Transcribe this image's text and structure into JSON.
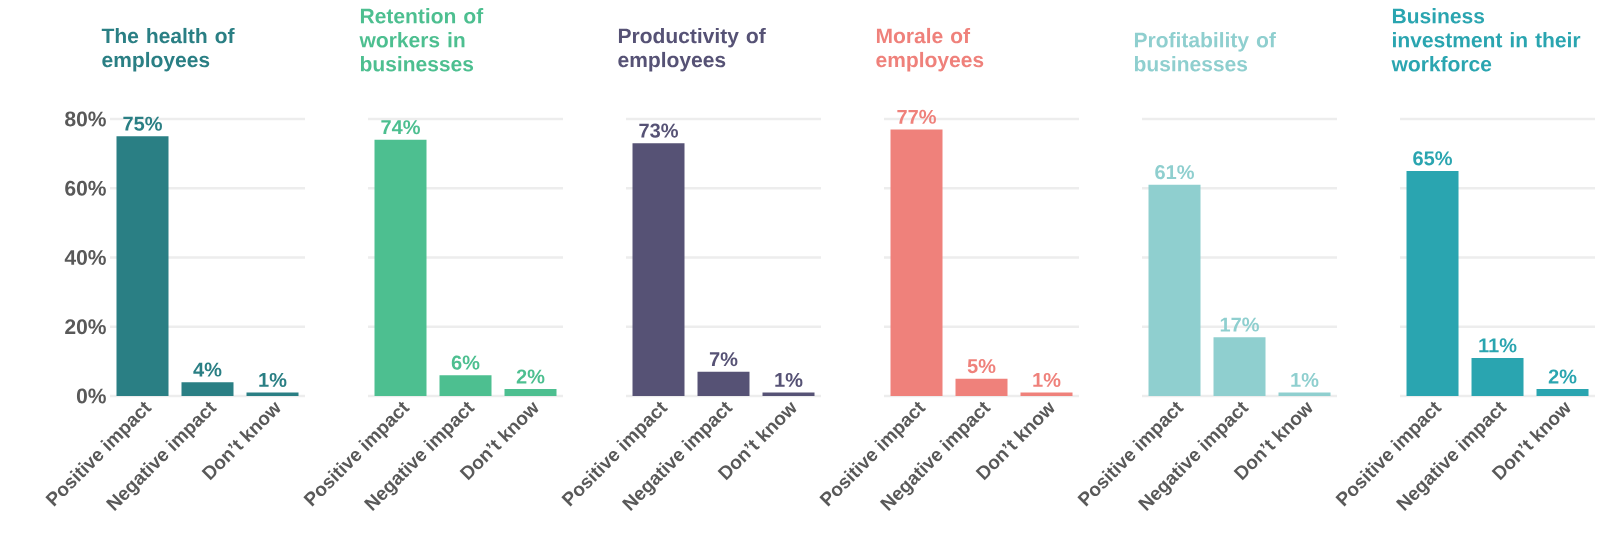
{
  "chart_data": [
    {
      "type": "bar",
      "title": "The health of employees",
      "categories": [
        "Positive impact",
        "Negative impact",
        "Don’t know"
      ],
      "values": [
        75,
        4,
        1
      ],
      "value_labels": [
        "75%",
        "4%",
        "1%"
      ],
      "color": "#2a7f84",
      "ylim": [
        0,
        80
      ],
      "yticks": [
        {
          "value": 0,
          "label": "0%"
        },
        {
          "value": 20,
          "label": "20%"
        },
        {
          "value": 40,
          "label": "40%"
        },
        {
          "value": 60,
          "label": "60%"
        },
        {
          "value": 80,
          "label": "80%"
        }
      ],
      "grid": "y"
    },
    {
      "type": "bar",
      "title": "Retention of workers in businesses",
      "categories": [
        "Positive impact",
        "Negative impact",
        "Don’t know"
      ],
      "values": [
        74,
        6,
        2
      ],
      "value_labels": [
        "74%",
        "6%",
        "2%"
      ],
      "color": "#4dbf90",
      "ylim": [
        0,
        80
      ],
      "grid": "y",
      "tick_labels": "x"
    },
    {
      "type": "bar",
      "title": "Productivity of employees",
      "categories": [
        "Positive impact",
        "Negative impact",
        "Don’t know"
      ],
      "values": [
        73,
        7,
        1
      ],
      "value_labels": [
        "73%",
        "7%",
        "1%"
      ],
      "color": "#565275",
      "ylim": [
        0,
        80
      ],
      "grid": "y",
      "tick_labels": "x"
    },
    {
      "type": "bar",
      "title": "Morale of employees",
      "categories": [
        "Positive impact",
        "Negative impact",
        "Don’t know"
      ],
      "values": [
        77,
        5,
        1
      ],
      "value_labels": [
        "77%",
        "5%",
        "1%"
      ],
      "color": "#ef817b",
      "ylim": [
        0,
        80
      ],
      "grid": "y",
      "tick_labels": "x"
    },
    {
      "type": "bar",
      "title": "Profitability of businesses",
      "categories": [
        "Positive impact",
        "Negative impact",
        "Don’t know"
      ],
      "values": [
        61,
        17,
        1
      ],
      "value_labels": [
        "61%",
        "17%",
        "1%"
      ],
      "color": "#8fcfcf",
      "ylim": [
        0,
        80
      ],
      "grid": "y",
      "tick_labels": "x"
    },
    {
      "type": "bar",
      "title": "Business investment in their workforce",
      "categories": [
        "Positive impact",
        "Negative impact",
        "Don’t know"
      ],
      "values": [
        65,
        11,
        2
      ],
      "value_labels": [
        "65%",
        "11%",
        "2%"
      ],
      "color": "#2aa5b0",
      "ylim": [
        0,
        80
      ],
      "grid": "y",
      "tick_labels": "x"
    }
  ]
}
